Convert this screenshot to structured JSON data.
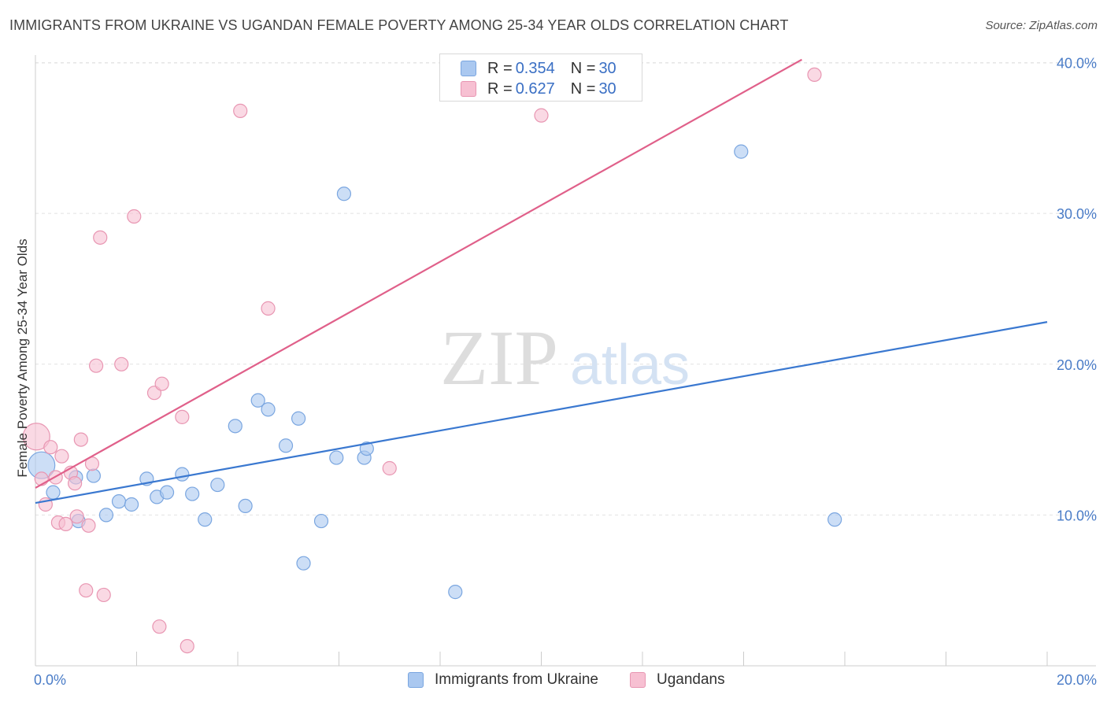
{
  "title": "IMMIGRANTS FROM UKRAINE VS UGANDAN FEMALE POVERTY AMONG 25-34 YEAR OLDS CORRELATION CHART",
  "source": "Source: ZipAtlas.com",
  "watermark": {
    "zip": "ZIP",
    "atlas": "atlas"
  },
  "legend": {
    "rows": [
      {
        "r_label": "R = ",
        "r_value": "0.354",
        "n_label": "N = ",
        "n_value": "30",
        "color": "#aac8f0",
        "border": "#7aa6e0"
      },
      {
        "r_label": "R = ",
        "r_value": "0.627",
        "n_label": "N = ",
        "n_value": "30",
        "color": "#f7c0d2",
        "border": "#e896b2"
      }
    ]
  },
  "bottom_legend": {
    "ukraine": "Immigrants from Ukraine",
    "ugandans": "Ugandans"
  },
  "chart_data": {
    "type": "scatter",
    "title": "IMMIGRANTS FROM UKRAINE VS UGANDAN FEMALE POVERTY AMONG 25-34 YEAR OLDS CORRELATION CHART",
    "xlabel": "",
    "ylabel": "Female Poverty Among 25-34 Year Olds",
    "xlim": [
      0,
      20
    ],
    "ylim": [
      0,
      40.5
    ],
    "x_tick_labels": [
      "0.0%",
      "20.0%"
    ],
    "y_ticks": [
      10,
      20,
      30,
      40
    ],
    "y_tick_labels": [
      "10.0%",
      "20.0%",
      "30.0%",
      "40.0%"
    ],
    "grid": true,
    "legend_position": "top-center",
    "series": [
      {
        "name": "Immigrants from Ukraine",
        "color": "#aac8f0",
        "edge": "#7aa6e0",
        "line_color": "#3a78d0",
        "trend": {
          "x": [
            0,
            20
          ],
          "y": [
            10.8,
            22.8
          ]
        },
        "points": [
          {
            "x": 0.12,
            "y": 13.3,
            "big": true
          },
          {
            "x": 0.8,
            "y": 12.5
          },
          {
            "x": 0.35,
            "y": 11.5
          },
          {
            "x": 1.15,
            "y": 12.6
          },
          {
            "x": 0.85,
            "y": 9.6
          },
          {
            "x": 1.4,
            "y": 10.0
          },
          {
            "x": 1.65,
            "y": 10.9
          },
          {
            "x": 1.9,
            "y": 10.7
          },
          {
            "x": 2.2,
            "y": 12.4
          },
          {
            "x": 2.4,
            "y": 11.2
          },
          {
            "x": 2.6,
            "y": 11.5
          },
          {
            "x": 2.9,
            "y": 12.7
          },
          {
            "x": 3.1,
            "y": 11.4
          },
          {
            "x": 3.35,
            "y": 9.7
          },
          {
            "x": 3.6,
            "y": 12.0
          },
          {
            "x": 3.95,
            "y": 15.9
          },
          {
            "x": 4.15,
            "y": 10.6
          },
          {
            "x": 4.4,
            "y": 17.6
          },
          {
            "x": 4.6,
            "y": 17.0
          },
          {
            "x": 4.95,
            "y": 14.6
          },
          {
            "x": 5.2,
            "y": 16.4
          },
          {
            "x": 5.3,
            "y": 6.8
          },
          {
            "x": 5.65,
            "y": 9.6
          },
          {
            "x": 5.95,
            "y": 13.8
          },
          {
            "x": 6.1,
            "y": 31.3
          },
          {
            "x": 6.5,
            "y": 13.8
          },
          {
            "x": 6.55,
            "y": 14.4
          },
          {
            "x": 8.3,
            "y": 4.9
          },
          {
            "x": 13.95,
            "y": 34.1
          },
          {
            "x": 15.8,
            "y": 9.7
          }
        ]
      },
      {
        "name": "Ugandans",
        "color": "#f7c0d2",
        "edge": "#e896b2",
        "line_color": "#e0608a",
        "trend": {
          "x": [
            0,
            15.15
          ],
          "y": [
            11.8,
            40.2
          ]
        },
        "points": [
          {
            "x": 0.02,
            "y": 15.2,
            "big": true
          },
          {
            "x": 0.12,
            "y": 12.4
          },
          {
            "x": 0.2,
            "y": 10.7
          },
          {
            "x": 0.3,
            "y": 14.5
          },
          {
            "x": 0.4,
            "y": 12.5
          },
          {
            "x": 0.45,
            "y": 9.5
          },
          {
            "x": 0.52,
            "y": 13.9
          },
          {
            "x": 0.6,
            "y": 9.4
          },
          {
            "x": 0.7,
            "y": 12.8
          },
          {
            "x": 0.78,
            "y": 12.1
          },
          {
            "x": 0.82,
            "y": 9.9
          },
          {
            "x": 0.9,
            "y": 15.0
          },
          {
            "x": 1.0,
            "y": 5.0
          },
          {
            "x": 1.05,
            "y": 9.3
          },
          {
            "x": 1.12,
            "y": 13.4
          },
          {
            "x": 1.2,
            "y": 19.9
          },
          {
            "x": 1.28,
            "y": 28.4
          },
          {
            "x": 1.35,
            "y": 4.7
          },
          {
            "x": 1.7,
            "y": 20.0
          },
          {
            "x": 1.95,
            "y": 29.8
          },
          {
            "x": 2.35,
            "y": 18.1
          },
          {
            "x": 2.45,
            "y": 2.6
          },
          {
            "x": 2.5,
            "y": 18.7
          },
          {
            "x": 2.9,
            "y": 16.5
          },
          {
            "x": 3.0,
            "y": 1.3
          },
          {
            "x": 4.05,
            "y": 36.8
          },
          {
            "x": 4.6,
            "y": 23.7
          },
          {
            "x": 7.0,
            "y": 13.1
          },
          {
            "x": 10.0,
            "y": 36.5
          },
          {
            "x": 15.4,
            "y": 39.2
          }
        ]
      }
    ]
  }
}
